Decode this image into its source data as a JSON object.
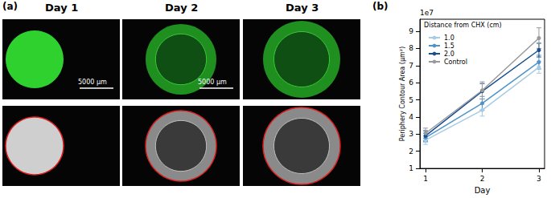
{
  "image_panel": {
    "label": "(a)",
    "columns": [
      {
        "title": "Day 1",
        "scale_bar": "5000 µm"
      },
      {
        "title": "Day 2",
        "scale_bar": "5000 µm"
      },
      {
        "title": "Day 3"
      }
    ]
  },
  "chart_data": {
    "type": "line",
    "panel_label": "(b)",
    "x_label": "Day",
    "y_label": "Periphery Contour Area (µm²)",
    "y_offset_text": "1e7",
    "legend_title": "Distance from CHX (cm)",
    "x": [
      1,
      2,
      3
    ],
    "series": [
      {
        "name": "1.0",
        "color": "#a6cbe3",
        "values": [
          2.65,
          4.4,
          6.9
        ],
        "errors": [
          0.25,
          0.35,
          0.35
        ]
      },
      {
        "name": "1.5",
        "color": "#4f93c8",
        "values": [
          2.8,
          4.8,
          7.2
        ],
        "errors": [
          0.25,
          0.4,
          0.4
        ]
      },
      {
        "name": "2.0",
        "color": "#1a4f8f",
        "values": [
          2.9,
          5.5,
          7.9
        ],
        "errors": [
          0.3,
          0.45,
          0.4
        ]
      },
      {
        "name": "Control",
        "color": "#999999",
        "values": [
          3.05,
          5.55,
          8.6
        ],
        "errors": [
          0.3,
          0.5,
          0.6
        ]
      }
    ],
    "xlim": [
      0.9,
      3.1
    ],
    "xticks": [
      1,
      2,
      3
    ],
    "ylim": [
      1,
      9.7
    ],
    "yticks": [
      1,
      2,
      3,
      4,
      5,
      6,
      7,
      8,
      9
    ],
    "grid": false,
    "legend": "upper left",
    "marker": "circle",
    "line_style": "solid"
  }
}
